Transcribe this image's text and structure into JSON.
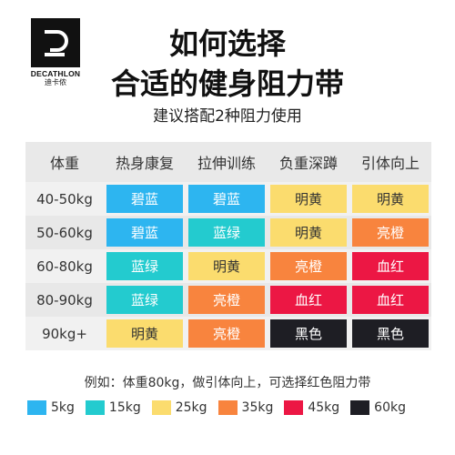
{
  "brand": {
    "mark": "D",
    "name": "DECATHLON",
    "name_cn": "迪卡侬"
  },
  "title_line1": "如何选择",
  "title_line2": "合适的健身阻力带",
  "subtitle": "建议搭配2种阻力使用",
  "table": {
    "headers": [
      "体重",
      "热身康复",
      "拉伸训练",
      "负重深蹲",
      "引体向上"
    ],
    "rows": [
      {
        "weight": "40-50kg",
        "cells": [
          {
            "label": "碧蓝",
            "color": "#2DB5F0",
            "text": "#ffffff"
          },
          {
            "label": "碧蓝",
            "color": "#2DB5F0",
            "text": "#ffffff"
          },
          {
            "label": "明黄",
            "color": "#FBDC6E",
            "text": "#333333"
          },
          {
            "label": "明黄",
            "color": "#FBDC6E",
            "text": "#333333"
          }
        ]
      },
      {
        "weight": "50-60kg",
        "cells": [
          {
            "label": "碧蓝",
            "color": "#2DB5F0",
            "text": "#ffffff"
          },
          {
            "label": "蓝绿",
            "color": "#23CBCF",
            "text": "#ffffff"
          },
          {
            "label": "明黄",
            "color": "#FBDC6E",
            "text": "#333333"
          },
          {
            "label": "亮橙",
            "color": "#F8843E",
            "text": "#ffffff"
          }
        ]
      },
      {
        "weight": "60-80kg",
        "cells": [
          {
            "label": "蓝绿",
            "color": "#23CBCF",
            "text": "#ffffff"
          },
          {
            "label": "明黄",
            "color": "#FBDC6E",
            "text": "#333333"
          },
          {
            "label": "亮橙",
            "color": "#F8843E",
            "text": "#ffffff"
          },
          {
            "label": "血红",
            "color": "#EC1744",
            "text": "#ffffff"
          }
        ]
      },
      {
        "weight": "80-90kg",
        "cells": [
          {
            "label": "蓝绿",
            "color": "#23CBCF",
            "text": "#ffffff"
          },
          {
            "label": "亮橙",
            "color": "#F8843E",
            "text": "#ffffff"
          },
          {
            "label": "血红",
            "color": "#EC1744",
            "text": "#ffffff"
          },
          {
            "label": "血红",
            "color": "#EC1744",
            "text": "#ffffff"
          }
        ]
      },
      {
        "weight": "90kg+",
        "cells": [
          {
            "label": "明黄",
            "color": "#FBDC6E",
            "text": "#333333"
          },
          {
            "label": "亮橙",
            "color": "#F8843E",
            "text": "#ffffff"
          },
          {
            "label": "黑色",
            "color": "#1E1E24",
            "text": "#ffffff"
          },
          {
            "label": "黑色",
            "color": "#1E1E24",
            "text": "#ffffff"
          }
        ]
      }
    ]
  },
  "example": "例如：体重80kg，做引体向上，可选择红色阻力带",
  "legend": [
    {
      "label": "5kg",
      "color": "#2DB5F0"
    },
    {
      "label": "15kg",
      "color": "#23CBCF"
    },
    {
      "label": "25kg",
      "color": "#FBDC6E"
    },
    {
      "label": "35kg",
      "color": "#F8843E"
    },
    {
      "label": "45kg",
      "color": "#EC1744"
    },
    {
      "label": "60kg",
      "color": "#1E1E24"
    }
  ]
}
